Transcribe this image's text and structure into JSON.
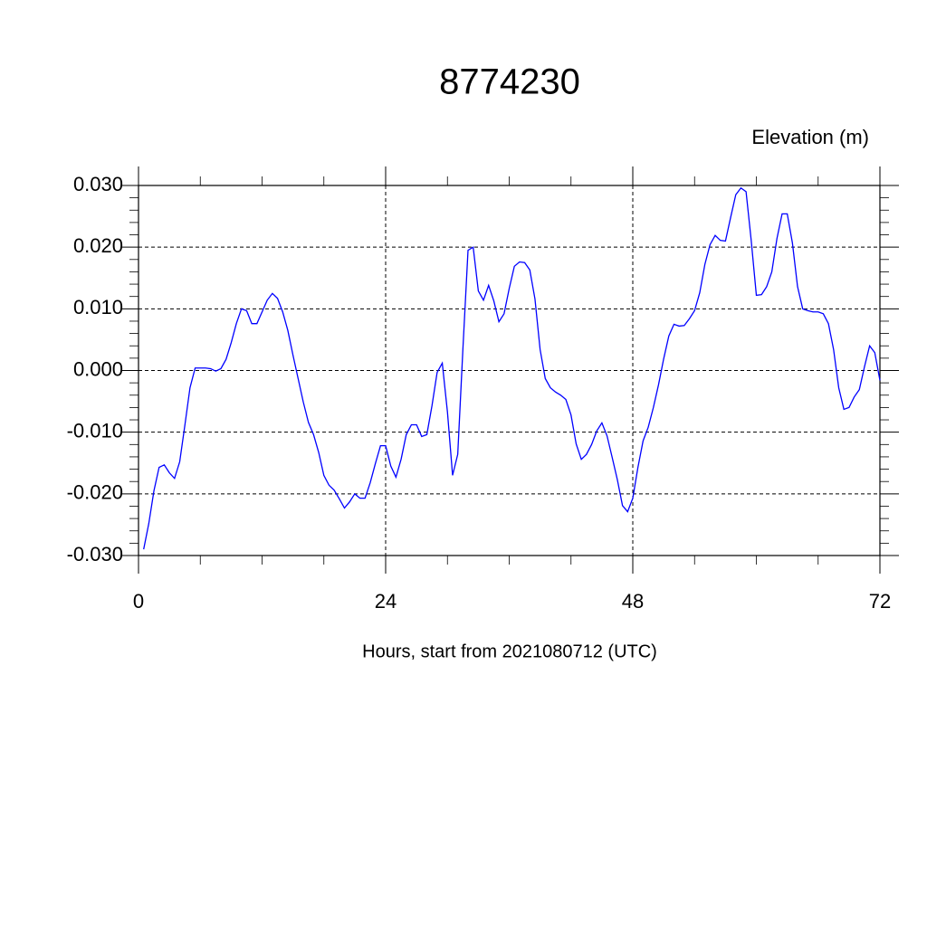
{
  "chart_data": {
    "type": "line",
    "title": "8774230",
    "y_label": "Elevation (m)",
    "x_label": "Hours, start from 2021080712 (UTC)",
    "xlim": [
      0,
      72
    ],
    "ylim": [
      -0.03,
      0.03
    ],
    "xticks": [
      0,
      24,
      48,
      72
    ],
    "yticks": [
      {
        "value": -0.03,
        "label": "-0.030"
      },
      {
        "value": -0.02,
        "label": "-0.020"
      },
      {
        "value": -0.01,
        "label": "-0.010"
      },
      {
        "value": 0,
        "label": "0.000"
      },
      {
        "value": 0.01,
        "label": "0.010"
      },
      {
        "value": 0.02,
        "label": "0.020"
      },
      {
        "value": 0.03,
        "label": "0.030"
      }
    ],
    "xminorticks": [
      6,
      12,
      18,
      30,
      36,
      42,
      54,
      60,
      66
    ],
    "yminorticks": [
      -0.028,
      -0.026,
      -0.024,
      -0.022,
      -0.018,
      -0.016,
      -0.014,
      -0.012,
      -0.008,
      -0.006,
      -0.004,
      -0.002,
      0.002,
      0.004,
      0.006,
      0.008,
      0.012,
      0.014,
      0.016,
      0.018,
      0.022,
      0.024,
      0.026,
      0.028
    ],
    "grid": true,
    "x": [
      0.5,
      1,
      1.5,
      2,
      2.5,
      3,
      3.5,
      4,
      4.5,
      5,
      5.5,
      6,
      6.5,
      7,
      7.5,
      8,
      8.5,
      9,
      9.5,
      10,
      10.5,
      11,
      11.5,
      12,
      12.5,
      13,
      13.5,
      14,
      14.5,
      15,
      15.5,
      16,
      16.5,
      17,
      17.5,
      18,
      18.5,
      19,
      19.5,
      20,
      20.5,
      21,
      21.5,
      22,
      22.5,
      23,
      23.5,
      24,
      24.5,
      25,
      25.5,
      26,
      26.5,
      27,
      27.5,
      28,
      28.5,
      29,
      29.5,
      30,
      30.5,
      31,
      31.5,
      32,
      32.5,
      33,
      33.5,
      34,
      34.5,
      35,
      35.5,
      36,
      36.5,
      37,
      37.5,
      38,
      38.5,
      39,
      39.5,
      40,
      40.5,
      41,
      41.5,
      42,
      42.5,
      43,
      43.5,
      44,
      44.5,
      45,
      45.5,
      46,
      46.5,
      47,
      47.5,
      48,
      48.5,
      49,
      49.5,
      50,
      50.5,
      51,
      51.5,
      52,
      52.5,
      53,
      53.5,
      54,
      54.5,
      55,
      55.5,
      56,
      56.5,
      57,
      57.5,
      58,
      58.5,
      59,
      59.5,
      60,
      60.5,
      61,
      61.5,
      62,
      62.5,
      63,
      63.5,
      64,
      64.5,
      65,
      65.5,
      66,
      66.5,
      67,
      67.5,
      68,
      68.5,
      69,
      69.5,
      70,
      70.5,
      71,
      71.5,
      72
    ],
    "series": [
      {
        "color": "#0000ff",
        "values": [
          -0.029,
          -0.0248,
          -0.0195,
          -0.0157,
          -0.0153,
          -0.0166,
          -0.0175,
          -0.0148,
          -0.0089,
          -0.0028,
          0.0004,
          0.0004,
          0.0004,
          0.0003,
          -0.0001,
          0.0003,
          0.0018,
          0.0045,
          0.0076,
          0.01,
          0.0097,
          0.0076,
          0.0076,
          0.0095,
          0.0114,
          0.0125,
          0.0117,
          0.0095,
          0.0065,
          0.0025,
          -0.0013,
          -0.0051,
          -0.0084,
          -0.0104,
          -0.0133,
          -0.017,
          -0.0186,
          -0.0194,
          -0.0208,
          -0.0223,
          -0.0213,
          -0.02,
          -0.0207,
          -0.0207,
          -0.0182,
          -0.0151,
          -0.0122,
          -0.0122,
          -0.0155,
          -0.0173,
          -0.0144,
          -0.0104,
          -0.0088,
          -0.0088,
          -0.0107,
          -0.0104,
          -0.0057,
          -0.0003,
          0.0012,
          -0.0067,
          -0.017,
          -0.0136,
          0.0034,
          0.0195,
          0.02,
          0.0129,
          0.0114,
          0.0138,
          0.0113,
          0.0079,
          0.0092,
          0.0133,
          0.0169,
          0.0176,
          0.0175,
          0.0163,
          0.0116,
          0.0034,
          -0.0013,
          -0.0028,
          -0.0035,
          -0.004,
          -0.0047,
          -0.0072,
          -0.0119,
          -0.0144,
          -0.0136,
          -0.012,
          -0.0098,
          -0.0085,
          -0.0106,
          -0.0141,
          -0.0177,
          -0.0219,
          -0.0229,
          -0.0207,
          -0.0157,
          -0.0114,
          -0.0092,
          -0.006,
          -0.0023,
          0.0019,
          0.0056,
          0.0075,
          0.0072,
          0.0073,
          0.0084,
          0.0097,
          0.0126,
          0.0172,
          0.0204,
          0.0219,
          0.0211,
          0.021,
          0.0248,
          0.0285,
          0.0296,
          0.029,
          0.0211,
          0.0122,
          0.0123,
          0.0136,
          0.016,
          0.0214,
          0.0254,
          0.0254,
          0.0207,
          0.0136,
          0.01,
          0.0097,
          0.0095,
          0.0095,
          0.0092,
          0.0076,
          0.0034,
          -0.0028,
          -0.0063,
          -0.006,
          -0.0043,
          -0.0031,
          0.0006,
          0.004,
          0.0029,
          -0.0016
        ]
      }
    ]
  }
}
